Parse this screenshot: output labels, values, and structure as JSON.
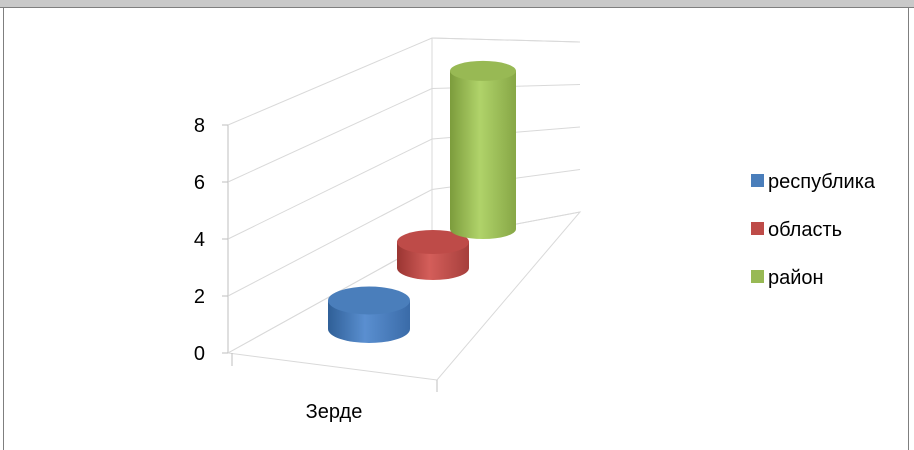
{
  "chart_data": {
    "type": "bar",
    "subtype": "3d-cylinder",
    "title": "",
    "xlabel": "",
    "ylabel": "",
    "categories": [
      "Зерде"
    ],
    "ylim": [
      0,
      8
    ],
    "yticks": [
      "0",
      "2",
      "4",
      "6",
      "8"
    ],
    "grid": true,
    "legend_position": "right",
    "series": [
      {
        "name": "республика",
        "values": [
          1
        ],
        "color": "#4a7ebb"
      },
      {
        "name": "область",
        "values": [
          1
        ],
        "color": "#be4b48"
      },
      {
        "name": "район",
        "values": [
          8.5
        ],
        "color": "#98b954"
      }
    ]
  }
}
